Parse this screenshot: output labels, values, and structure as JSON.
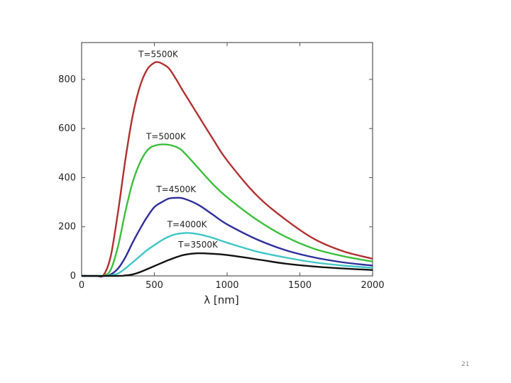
{
  "slide": {
    "page_number": "21"
  },
  "chart_data": {
    "type": "line",
    "title": "",
    "xlabel": "λ [nm]",
    "ylabel": "",
    "xlim": [
      0,
      2000
    ],
    "ylim": [
      0,
      950
    ],
    "x_ticks": [
      0,
      500,
      1000,
      1500,
      2000
    ],
    "y_ticks": [
      0,
      200,
      400,
      600,
      800
    ],
    "grid": false,
    "legend": "none",
    "series": [
      {
        "name": "T=5500K",
        "color": "#b03030",
        "x": [
          100,
          150,
          200,
          250,
          300,
          350,
          400,
          450,
          500,
          527,
          550,
          600,
          650,
          700,
          800,
          900,
          1000,
          1200,
          1400,
          1600,
          1800,
          2000
        ],
        "values": [
          0,
          3,
          80,
          260,
          470,
          650,
          770,
          840,
          868,
          870,
          865,
          845,
          800,
          750,
          655,
          560,
          470,
          330,
          230,
          150,
          100,
          70
        ]
      },
      {
        "name": "T=5000K",
        "color": "#3cbf3c",
        "x": [
          100,
          150,
          200,
          250,
          300,
          350,
          400,
          450,
          500,
          580,
          650,
          700,
          800,
          900,
          1000,
          1200,
          1400,
          1600,
          1800,
          2000
        ],
        "values": [
          0,
          1,
          25,
          120,
          260,
          380,
          460,
          510,
          530,
          535,
          525,
          505,
          440,
          375,
          320,
          230,
          160,
          110,
          80,
          58
        ]
      },
      {
        "name": "T=4500K",
        "color": "#2e2e9a",
        "x": [
          150,
          200,
          250,
          300,
          350,
          400,
          450,
          500,
          550,
          600,
          650,
          700,
          800,
          900,
          1000,
          1200,
          1400,
          1600,
          1800,
          2000
        ],
        "values": [
          0,
          6,
          30,
          75,
          135,
          190,
          240,
          280,
          300,
          315,
          318,
          315,
          290,
          250,
          210,
          150,
          105,
          75,
          55,
          42
        ]
      },
      {
        "name": "T=4000K",
        "color": "#3fc6c6",
        "x": [
          150,
          200,
          250,
          300,
          350,
          400,
          450,
          500,
          550,
          600,
          650,
          725,
          800,
          900,
          1000,
          1200,
          1400,
          1600,
          1800,
          2000
        ],
        "values": [
          0,
          2,
          10,
          30,
          55,
          80,
          105,
          125,
          145,
          160,
          170,
          175,
          170,
          155,
          135,
          100,
          75,
          55,
          42,
          33
        ]
      },
      {
        "name": "T=3500K",
        "color": "#111111",
        "x": [
          250,
          300,
          350,
          400,
          500,
          600,
          700,
          800,
          900,
          1000,
          1200,
          1400,
          1600,
          1800,
          2000
        ],
        "values": [
          0,
          2,
          6,
          15,
          40,
          65,
          85,
          92,
          90,
          85,
          68,
          50,
          38,
          30,
          24
        ]
      }
    ]
  }
}
